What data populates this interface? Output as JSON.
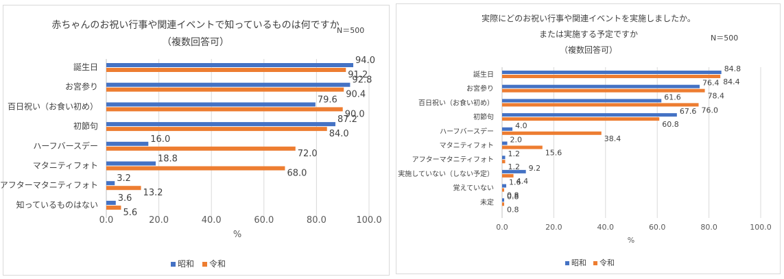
{
  "chart_data": [
    {
      "type": "bar",
      "orientation": "horizontal",
      "title": "赤ちゃんのお祝い行事や関連イベントで知っているものは何ですか",
      "subtitle": "（複数回答可）",
      "note": "N＝500",
      "xlabel": "%",
      "ylabel": "",
      "xlim": [
        0,
        100
      ],
      "x_ticks": [
        "0.0",
        "20.0",
        "40.0",
        "60.0",
        "80.0",
        "100.0"
      ],
      "grid": true,
      "legend_position": "bottom",
      "categories": [
        "誕生日",
        "お宮参り",
        "百日祝い（お食い初め）",
        "初節句",
        "ハーフバースデー",
        "マタニティフォト",
        "アフターマタニティフォト",
        "知っているものはない"
      ],
      "series": [
        {
          "name": "昭和",
          "color": "#4472C4",
          "values": [
            94.0,
            92.8,
            79.6,
            87.2,
            16.0,
            18.8,
            3.2,
            3.6
          ]
        },
        {
          "name": "令和",
          "color": "#ED7D31",
          "values": [
            91.2,
            90.4,
            90.0,
            84.0,
            72.0,
            68.0,
            13.2,
            5.6
          ]
        }
      ]
    },
    {
      "type": "bar",
      "orientation": "horizontal",
      "title": "実際にどのお祝い行事や関連イベントを実施しましたか。",
      "title_line2": "または実施する予定ですか",
      "subtitle": "（複数回答可）",
      "note": "N＝500",
      "xlabel": "%",
      "ylabel": "",
      "xlim": [
        0,
        100
      ],
      "x_ticks": [
        "0.0",
        "20.0",
        "40.0",
        "60.0",
        "80.0",
        "100.0"
      ],
      "grid": true,
      "legend_position": "bottom",
      "categories": [
        "誕生日",
        "お宮参り",
        "百日祝い（お食い初め）",
        "初節句",
        "ハーフバースデー",
        "マタニティフォト",
        "アフターマタニティフォト",
        "実施していない（しない予定）",
        "覚えていない",
        "未定"
      ],
      "series": [
        {
          "name": "昭和",
          "color": "#4472C4",
          "values": [
            84.8,
            76.4,
            61.6,
            67.6,
            4.0,
            2.0,
            1.2,
            9.2,
            1.6,
            0.8
          ]
        },
        {
          "name": "令和",
          "color": "#ED7D31",
          "values": [
            84.4,
            78.4,
            76.0,
            60.8,
            38.4,
            15.6,
            1.2,
            4.4,
            0.8,
            0.8
          ]
        }
      ]
    }
  ]
}
